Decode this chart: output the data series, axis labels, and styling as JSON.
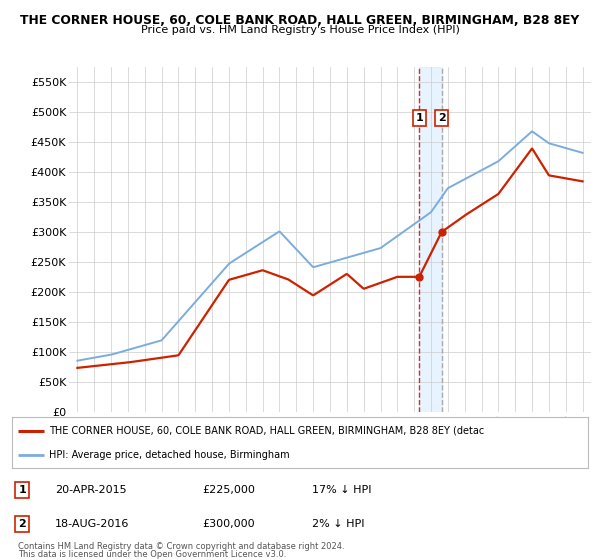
{
  "title1": "THE CORNER HOUSE, 60, COLE BANK ROAD, HALL GREEN, BIRMINGHAM, B28 8EY",
  "title2": "Price paid vs. HM Land Registry's House Price Index (HPI)",
  "ylim": [
    0,
    575000
  ],
  "yticks": [
    0,
    50000,
    100000,
    150000,
    200000,
    250000,
    300000,
    350000,
    400000,
    450000,
    500000,
    550000
  ],
  "ytick_labels": [
    "£0",
    "£50K",
    "£100K",
    "£150K",
    "£200K",
    "£250K",
    "£300K",
    "£350K",
    "£400K",
    "£450K",
    "£500K",
    "£550K"
  ],
  "xlim": [
    1994.5,
    2025.5
  ],
  "xticks": [
    1995,
    1996,
    1997,
    1998,
    1999,
    2000,
    2001,
    2002,
    2003,
    2004,
    2005,
    2006,
    2007,
    2008,
    2009,
    2010,
    2011,
    2012,
    2013,
    2014,
    2015,
    2016,
    2017,
    2018,
    2019,
    2020,
    2021,
    2022,
    2023,
    2024,
    2025
  ],
  "hpi_color": "#7aadde",
  "price_color": "#cc2200",
  "transaction1": {
    "date": 2015.3,
    "price": 225000,
    "label": "1",
    "date_str": "20-APR-2015",
    "hpi_diff": "17% ↓ HPI"
  },
  "transaction2": {
    "date": 2016.63,
    "price": 300000,
    "label": "2",
    "date_str": "18-AUG-2016",
    "hpi_diff": "2% ↓ HPI"
  },
  "legend_price_label": "THE CORNER HOUSE, 60, COLE BANK ROAD, HALL GREEN, BIRMINGHAM, B28 8EY (detac",
  "legend_hpi_label": "HPI: Average price, detached house, Birmingham",
  "footer1": "Contains HM Land Registry data © Crown copyright and database right 2024.",
  "footer2": "This data is licensed under the Open Government Licence v3.0.",
  "bg_color": "#ffffff",
  "plot_bg_color": "#ffffff",
  "grid_color": "#cccccc",
  "shade_color": "#ddeeff"
}
